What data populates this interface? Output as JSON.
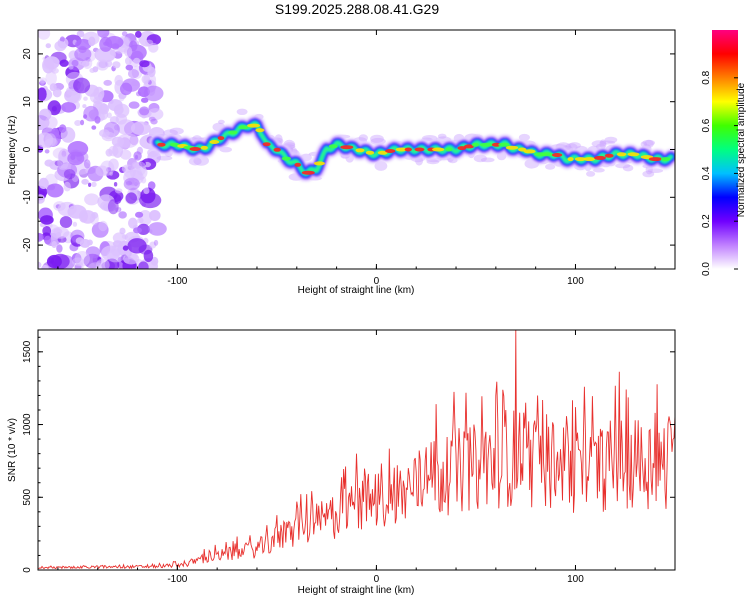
{
  "title": "S199.2025.288.08.41.G29",
  "chart_data": [
    {
      "type": "heatmap",
      "name": "spectrogram",
      "xlabel": "Height of straight line (km)",
      "ylabel": "Frequency (Hz)",
      "xlim": [
        -170,
        150
      ],
      "ylim": [
        -25,
        25
      ],
      "xticks": [
        -100,
        0,
        100
      ],
      "yticks": [
        -20,
        -10,
        0,
        10,
        20
      ],
      "noise_region_x": [
        -170,
        -110
      ],
      "track": {
        "x": [
          -110,
          -100,
          -90,
          -85,
          -80,
          -75,
          -70,
          -65,
          -60,
          -57,
          -55,
          -50,
          -45,
          -40,
          -35,
          -30,
          -25,
          -20,
          -10,
          0,
          10,
          20,
          30,
          40,
          50,
          55,
          60,
          65,
          70,
          75,
          80,
          85,
          90,
          95,
          100,
          110,
          120,
          130,
          140,
          148
        ],
        "y": [
          1,
          1,
          0,
          0.5,
          2,
          3,
          4,
          5,
          5,
          3,
          1,
          0,
          -2,
          -3,
          -5,
          -4,
          0,
          1,
          0,
          -1,
          0,
          0,
          0,
          0,
          1,
          1,
          1,
          1,
          0,
          0,
          -1,
          -1,
          -1,
          -2,
          -2,
          -2,
          -1,
          -1,
          -2,
          -2
        ]
      },
      "colorbar": {
        "label": "Normalized spectral amplitude",
        "range": [
          0.0,
          1.0
        ],
        "ticks": [
          "0.0",
          "0.2",
          "0.4",
          "0.6",
          "0.8"
        ],
        "colors": [
          "#ffffff",
          "#c080ff",
          "#7000ff",
          "#0000ff",
          "#00c0ff",
          "#00ff80",
          "#40ff00",
          "#ffff00",
          "#ff8000",
          "#ff0000",
          "#ff0080"
        ]
      }
    },
    {
      "type": "line",
      "name": "snr",
      "xlabel": "Height of straight line (km)",
      "ylabel": "SNR (10 * v/v)",
      "xlim": [
        -170,
        150
      ],
      "ylim": [
        0,
        1650
      ],
      "xticks": [
        -100,
        0,
        100
      ],
      "yticks": [
        0,
        500,
        1000,
        1500
      ],
      "color": "#e8312e",
      "envelope": {
        "x": [
          -170,
          -140,
          -110,
          -95,
          -90,
          -80,
          -70,
          -60,
          -50,
          -40,
          -30,
          -20,
          -10,
          0,
          10,
          20,
          30,
          40,
          50,
          60,
          70,
          80,
          90,
          100,
          110,
          120,
          130,
          140,
          150
        ],
        "y": [
          15,
          20,
          25,
          40,
          70,
          100,
          120,
          150,
          220,
          280,
          330,
          380,
          450,
          500,
          520,
          600,
          650,
          700,
          720,
          760,
          800,
          760,
          740,
          700,
          700,
          760,
          760,
          760,
          760
        ]
      },
      "peaks": [
        [
          -70,
          230
        ],
        [
          -40,
          470
        ],
        [
          -22,
          500
        ],
        [
          -10,
          800
        ],
        [
          55,
          950
        ],
        [
          60,
          1200
        ],
        [
          65,
          1100
        ],
        [
          70,
          1650
        ],
        [
          75,
          1150
        ],
        [
          100,
          1120
        ],
        [
          130,
          1030
        ],
        [
          140,
          1080
        ]
      ]
    }
  ]
}
